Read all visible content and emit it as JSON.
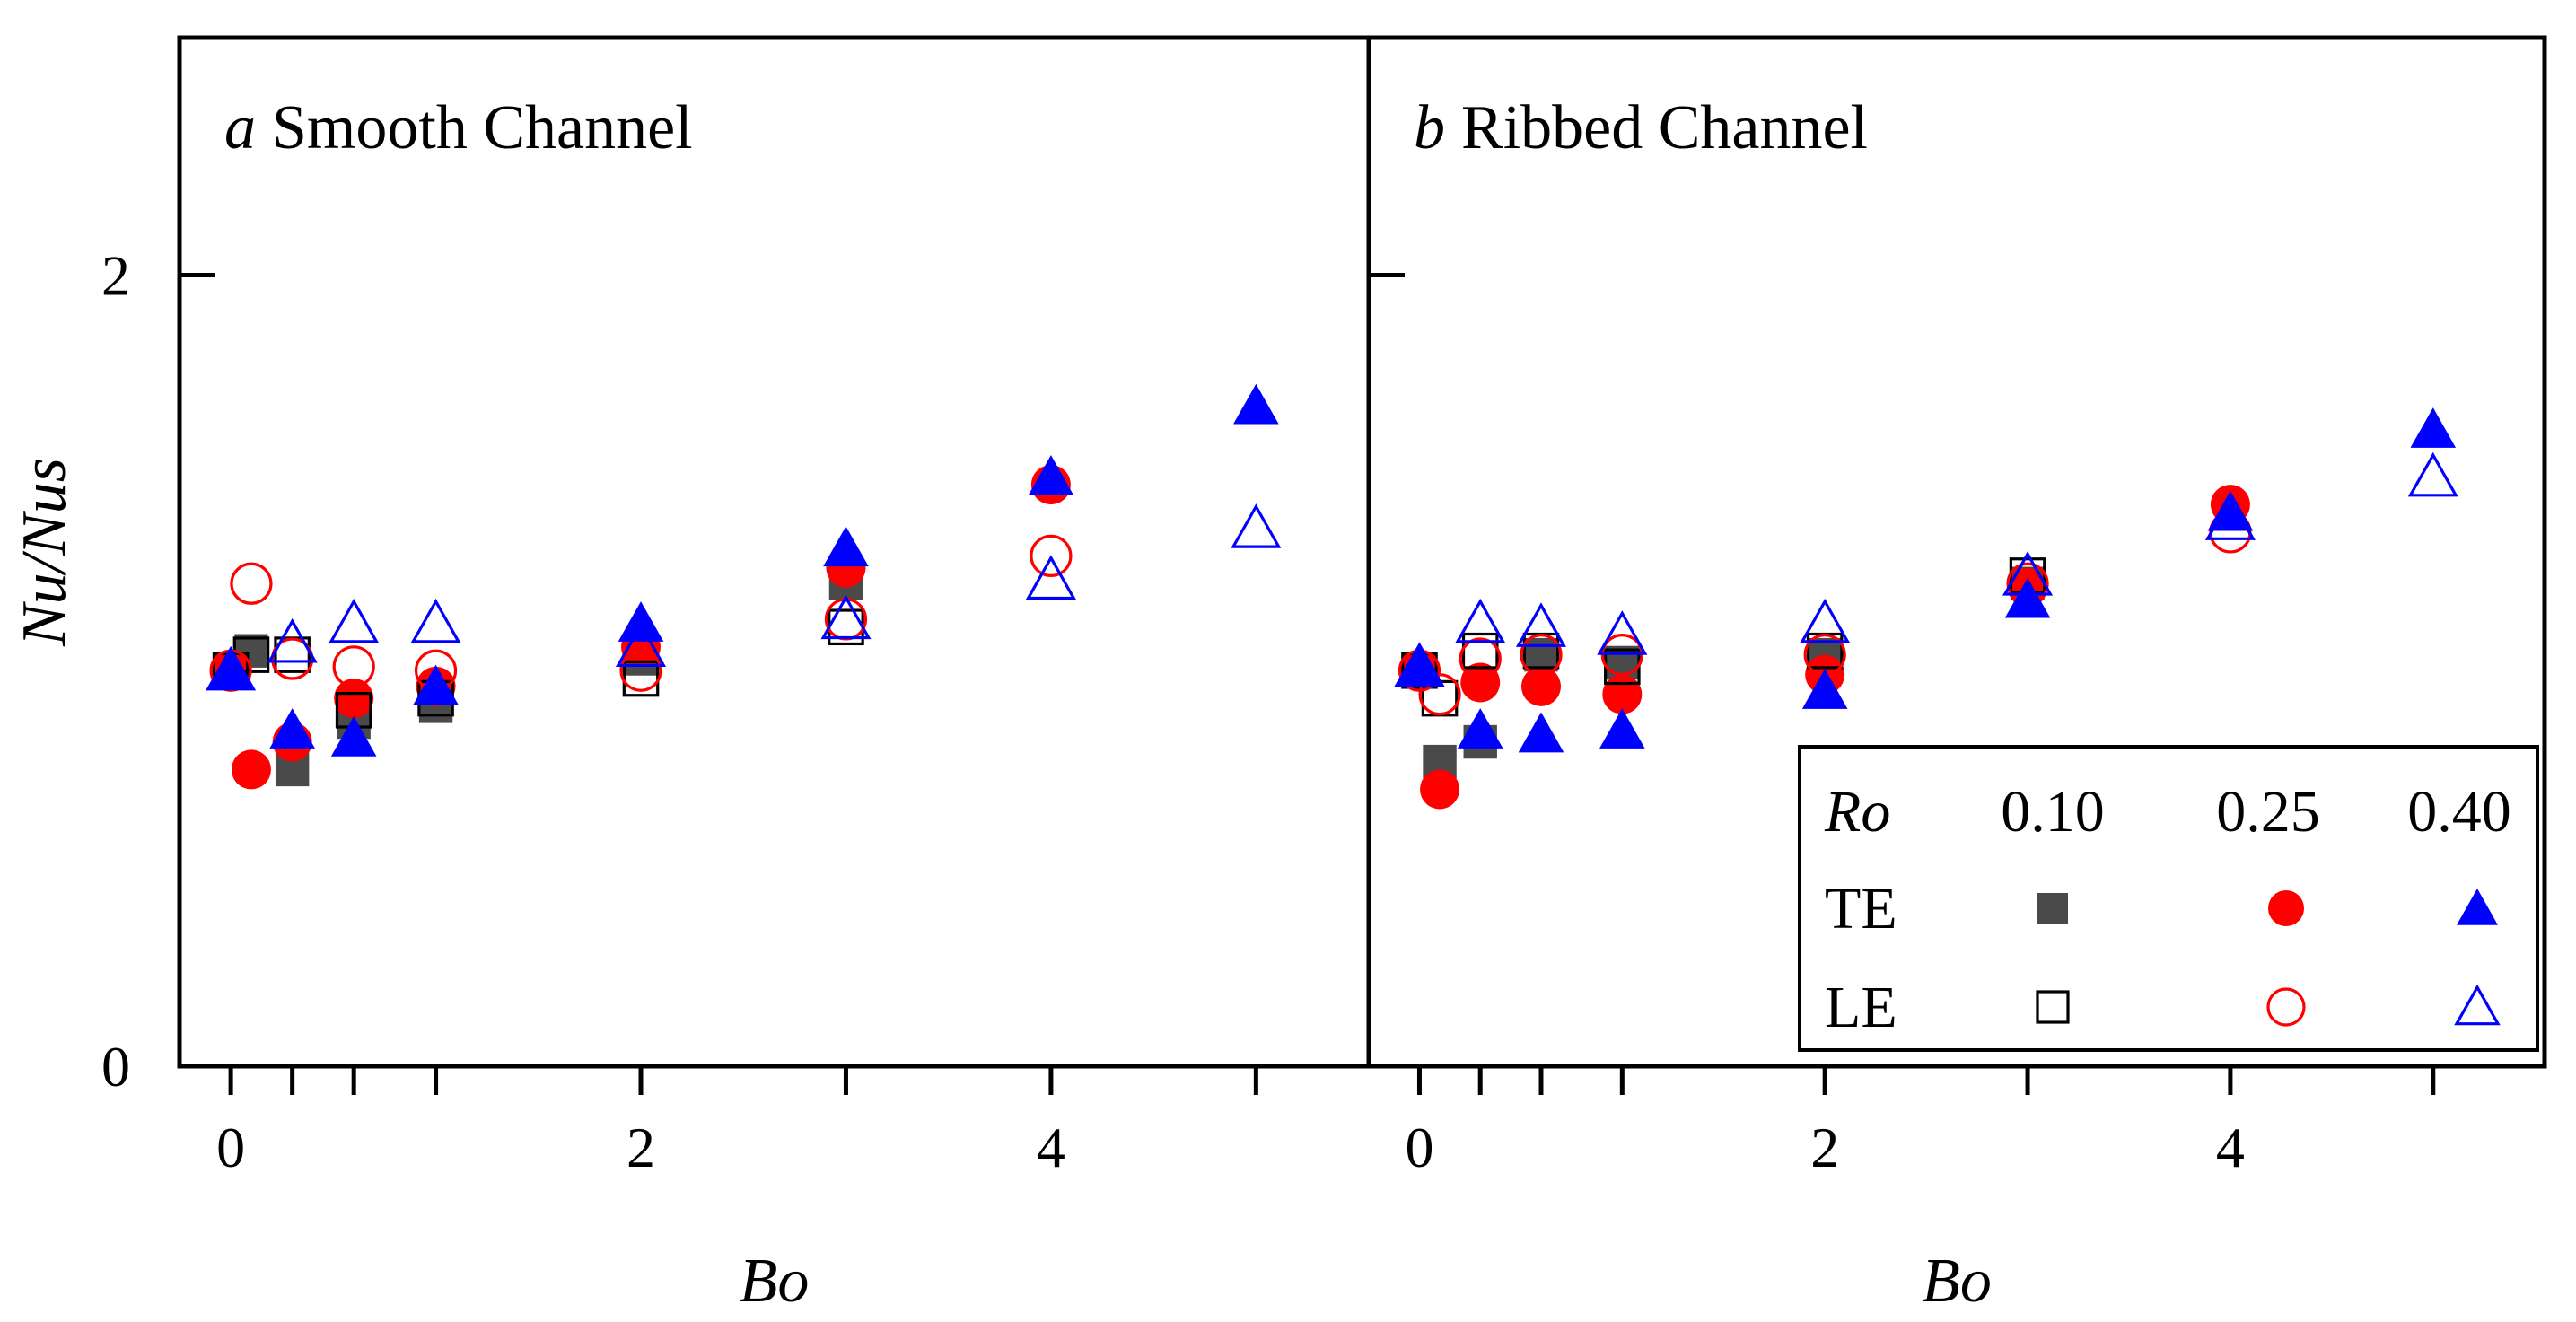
{
  "chart_data": [
    {
      "type": "scatter",
      "panel_letter": "a",
      "title": "Smooth Channel",
      "xlabel": "Bo",
      "ylabel": "Nu/Nus",
      "xlim": [
        -0.25,
        5.55
      ],
      "ylim": [
        0,
        2.6
      ],
      "xticks": [
        0,
        2,
        4
      ],
      "minor_xticks": [
        0,
        0.3,
        0.6,
        1,
        2,
        3,
        4,
        5
      ],
      "yticks": [
        0,
        2
      ],
      "series": [
        {
          "name": "TE Ro=0.10",
          "group": "TE",
          "ro": "0.10",
          "marker": "square",
          "filled": true,
          "color": "#4a4a4a",
          "points": [
            [
              0,
              1.0
            ],
            [
              0.1,
              1.05
            ],
            [
              0.3,
              0.75
            ],
            [
              0.6,
              0.87
            ],
            [
              1,
              0.91
            ],
            [
              2,
              1.03
            ],
            [
              3,
              1.22
            ]
          ]
        },
        {
          "name": "TE Ro=0.25",
          "group": "TE",
          "ro": "0.25",
          "marker": "circle",
          "filled": true,
          "color": "#ff0000",
          "points": [
            [
              0,
              1.0
            ],
            [
              0.1,
              0.75
            ],
            [
              0.3,
              0.82
            ],
            [
              0.6,
              0.93
            ],
            [
              1,
              0.96
            ],
            [
              2,
              1.06
            ],
            [
              3,
              1.26
            ],
            [
              4,
              1.47
            ]
          ]
        },
        {
          "name": "TE Ro=0.40",
          "group": "TE",
          "ro": "0.40",
          "marker": "triangle",
          "filled": true,
          "color": "#0000ff",
          "points": [
            [
              0,
              1.0
            ],
            [
              0.3,
              0.85
            ],
            [
              0.6,
              0.83
            ],
            [
              1,
              0.96
            ],
            [
              2,
              1.12
            ],
            [
              3,
              1.31
            ],
            [
              4,
              1.49
            ],
            [
              5,
              1.67
            ]
          ]
        },
        {
          "name": "LE Ro=0.10",
          "group": "LE",
          "ro": "0.10",
          "marker": "square",
          "filled": false,
          "color": "#000000",
          "points": [
            [
              0,
              1.0
            ],
            [
              0.1,
              1.04
            ],
            [
              0.3,
              1.04
            ],
            [
              0.6,
              0.9
            ],
            [
              1,
              0.93
            ],
            [
              2,
              0.98
            ],
            [
              3,
              1.11
            ]
          ]
        },
        {
          "name": "LE Ro=0.25",
          "group": "LE",
          "ro": "0.25",
          "marker": "circle",
          "filled": false,
          "color": "#ff0000",
          "points": [
            [
              0,
              1.0
            ],
            [
              0.1,
              1.22
            ],
            [
              0.3,
              1.03
            ],
            [
              0.6,
              1.01
            ],
            [
              1,
              1.0
            ],
            [
              2,
              1.0
            ],
            [
              3,
              1.13
            ],
            [
              4,
              1.29
            ]
          ]
        },
        {
          "name": "LE Ro=0.40",
          "group": "LE",
          "ro": "0.40",
          "marker": "triangle",
          "filled": false,
          "color": "#0000ff",
          "points": [
            [
              0,
              1.0
            ],
            [
              0.3,
              1.07
            ],
            [
              0.6,
              1.12
            ],
            [
              1,
              1.12
            ],
            [
              2,
              1.06
            ],
            [
              3,
              1.13
            ],
            [
              4,
              1.23
            ],
            [
              5,
              1.36
            ]
          ]
        }
      ]
    },
    {
      "type": "scatter",
      "panel_letter": "b",
      "title": "Ribbed Channel",
      "xlabel": "Bo",
      "ylabel": "Nu/Nus",
      "xlim": [
        -0.25,
        5.55
      ],
      "ylim": [
        0,
        2.6
      ],
      "xticks": [
        0,
        2,
        4
      ],
      "minor_xticks": [
        0,
        0.3,
        0.6,
        1,
        2,
        3,
        4,
        5
      ],
      "yticks": [
        0,
        2
      ],
      "series": [
        {
          "name": "TE Ro=0.10",
          "group": "TE",
          "ro": "0.10",
          "marker": "square",
          "filled": true,
          "color": "#4a4a4a",
          "points": [
            [
              0,
              1.0
            ],
            [
              0.1,
              0.77
            ],
            [
              0.3,
              0.82
            ],
            [
              0.6,
              1.04
            ],
            [
              1,
              1.02
            ],
            [
              2,
              1.04
            ],
            [
              3,
              1.22
            ]
          ]
        },
        {
          "name": "TE Ro=0.25",
          "group": "TE",
          "ro": "0.25",
          "marker": "circle",
          "filled": true,
          "color": "#ff0000",
          "points": [
            [
              0,
              1.0
            ],
            [
              0.1,
              0.7
            ],
            [
              0.3,
              0.97
            ],
            [
              0.6,
              0.96
            ],
            [
              1,
              0.94
            ],
            [
              2,
              0.99
            ],
            [
              3,
              1.21
            ],
            [
              4,
              1.42
            ]
          ]
        },
        {
          "name": "TE Ro=0.40",
          "group": "TE",
          "ro": "0.40",
          "marker": "triangle",
          "filled": true,
          "color": "#0000ff",
          "points": [
            [
              0,
              1.01
            ],
            [
              0.3,
              0.85
            ],
            [
              0.6,
              0.84
            ],
            [
              1,
              0.85
            ],
            [
              2,
              0.95
            ],
            [
              3,
              1.18
            ],
            [
              4,
              1.4
            ],
            [
              5,
              1.61
            ]
          ]
        },
        {
          "name": "LE Ro=0.10",
          "group": "LE",
          "ro": "0.10",
          "marker": "square",
          "filled": false,
          "color": "#000000",
          "points": [
            [
              0,
              1.0
            ],
            [
              0.1,
              0.93
            ],
            [
              0.3,
              1.05
            ],
            [
              0.6,
              1.05
            ],
            [
              1,
              1.01
            ],
            [
              2,
              1.05
            ],
            [
              3,
              1.24
            ]
          ]
        },
        {
          "name": "LE Ro=0.25",
          "group": "LE",
          "ro": "0.25",
          "marker": "circle",
          "filled": false,
          "color": "#ff0000",
          "points": [
            [
              0,
              1.0
            ],
            [
              0.1,
              0.94
            ],
            [
              0.3,
              1.03
            ],
            [
              0.6,
              1.04
            ],
            [
              1,
              1.04
            ],
            [
              2,
              1.04
            ],
            [
              3,
              1.22
            ],
            [
              4,
              1.35
            ]
          ]
        },
        {
          "name": "LE Ro=0.40",
          "group": "LE",
          "ro": "0.40",
          "marker": "triangle",
          "filled": false,
          "color": "#0000ff",
          "points": [
            [
              0,
              1.01
            ],
            [
              0.3,
              1.12
            ],
            [
              0.6,
              1.11
            ],
            [
              1,
              1.09
            ],
            [
              2,
              1.12
            ],
            [
              3,
              1.24
            ],
            [
              4,
              1.38
            ],
            [
              5,
              1.49
            ]
          ]
        }
      ]
    }
  ],
  "legend": {
    "header": "Ro",
    "columns": [
      "0.10",
      "0.25",
      "0.40"
    ],
    "rows": [
      "TE",
      "LE"
    ],
    "placement": "bottom-right of panel b"
  },
  "colors": {
    "ro_010_fill": "#4a4a4a",
    "ro_025": "#ff0000",
    "ro_040": "#0000ff"
  }
}
